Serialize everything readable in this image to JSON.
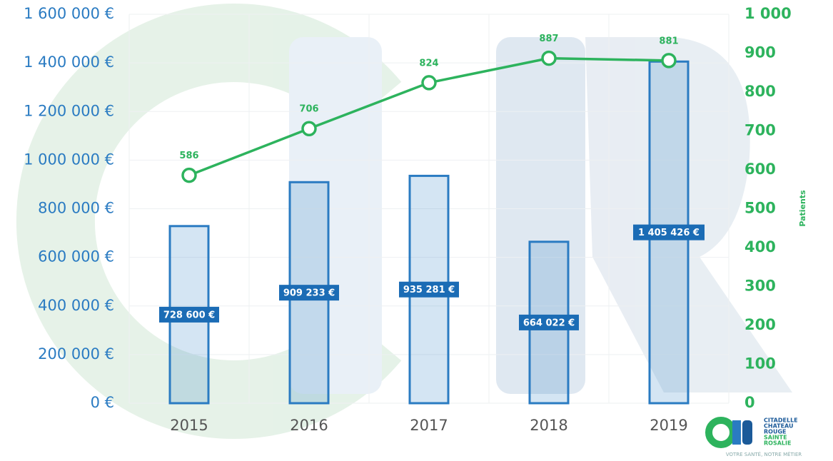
{
  "chart_data": {
    "type": "bar_line",
    "categories": [
      "2015",
      "2016",
      "2017",
      "2018",
      "2019"
    ],
    "series": [
      {
        "type": "bar",
        "axis": "y",
        "color": "#2a7bc2",
        "values": [
          728600,
          909233,
          935281,
          664022,
          1405426
        ],
        "value_labels": [
          "728 600 €",
          "909 233 €",
          "935 281 €",
          "664 022 €",
          "1 405 426 €"
        ]
      },
      {
        "type": "line",
        "axis": "y2",
        "color": "#2db35d",
        "values": [
          586,
          706,
          824,
          887,
          881
        ]
      }
    ],
    "ylim": [
      0,
      1600000
    ],
    "yticks": [
      {
        "value": 0,
        "label": "0 €"
      },
      {
        "value": 200000,
        "label": "200 000 €"
      },
      {
        "value": 400000,
        "label": "400 000 €"
      },
      {
        "value": 600000,
        "label": "600 000 €"
      },
      {
        "value": 800000,
        "label": "800 000 €"
      },
      {
        "value": 1000000,
        "label": "1 000 000 €"
      },
      {
        "value": 1200000,
        "label": "1 200 000 €"
      },
      {
        "value": 1400000,
        "label": "1 400 000 €"
      },
      {
        "value": 1600000,
        "label": "1 600 000 €"
      }
    ],
    "y2lim": [
      0,
      1000
    ],
    "y2ticks": [
      0,
      100,
      200,
      300,
      400,
      500,
      600,
      700,
      800,
      900,
      {
        "value": 1000,
        "label": "1 000"
      }
    ],
    "y2label": "Patients",
    "grid": true
  },
  "logo": {
    "lines": [
      "CITADELLE",
      "CHATEAU",
      "ROUGE",
      "SAINTE",
      "ROSALIE"
    ],
    "tagline": "VOTRE SANTÉ, NOTRE MÉTIER"
  }
}
